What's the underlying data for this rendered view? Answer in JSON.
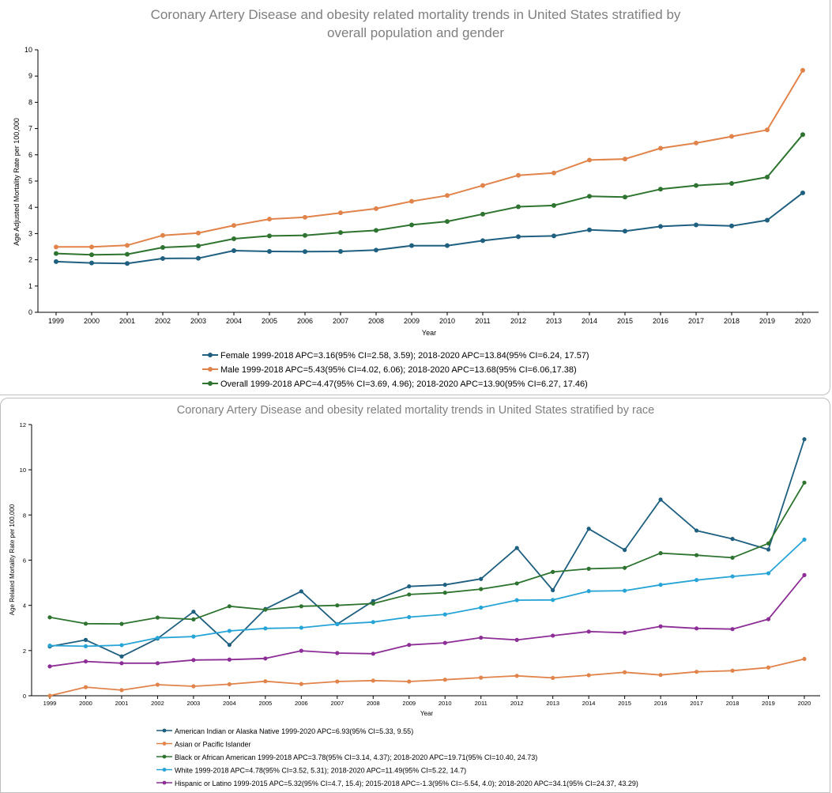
{
  "colors": {
    "female": "#1f5f7f",
    "male": "#e0844b",
    "overall": "#2e7430",
    "aian": "#1f5f7f",
    "api": "#e0844b",
    "black": "#2e7430",
    "white": "#27a4d6",
    "hispanic": "#8c2e95",
    "axis": "#000000",
    "title": "#7f7f7f"
  },
  "chart_data": [
    {
      "type": "line",
      "title_lines": [
        "Coronary Artery Disease and obesity related mortality trends in United States stratified by",
        "overall population and gender"
      ],
      "xlabel": "Year",
      "ylabel": "Age Adjusted Mortality Rate per 100,000",
      "ylim": [
        0,
        10
      ],
      "yticks": [
        "0",
        "1",
        "2",
        "3",
        "4",
        "5",
        "6",
        "7",
        "8",
        "9",
        "10"
      ],
      "categories": [
        "1999",
        "2000",
        "2001",
        "2002",
        "2003",
        "2004",
        "2005",
        "2006",
        "2007",
        "2008",
        "2009",
        "2010",
        "2011",
        "2012",
        "2013",
        "2014",
        "2015",
        "2016",
        "2017",
        "2018",
        "2019",
        "2020"
      ],
      "series": [
        {
          "key": "female",
          "name": "Female 1999-2018 APC=3.16(95% CI=2.58, 3.59); 2018-2020 APC=13.84(95% CI=6.24, 17.57)",
          "values": [
            1.93,
            1.88,
            1.86,
            2.05,
            2.06,
            2.35,
            2.32,
            2.31,
            2.32,
            2.37,
            2.54,
            2.54,
            2.73,
            2.88,
            2.91,
            3.14,
            3.09,
            3.27,
            3.33,
            3.29,
            3.51,
            4.55
          ]
        },
        {
          "key": "male",
          "name": "Male 1999-2018 APC=5.43(95% CI=4.02, 6.06); 2018-2020 APC=13.68(95% CI=6.06,17.38)",
          "values": [
            2.49,
            2.49,
            2.55,
            2.93,
            3.02,
            3.31,
            3.55,
            3.62,
            3.79,
            3.95,
            4.23,
            4.45,
            4.83,
            5.22,
            5.31,
            5.8,
            5.84,
            6.25,
            6.45,
            6.7,
            6.95,
            9.22
          ]
        },
        {
          "key": "overall",
          "name": "Overall 1999-2018 APC=4.47(95% CI=3.69, 4.96); 2018-2020 APC=13.90(95% CI=6.27, 17.46)",
          "values": [
            2.24,
            2.19,
            2.21,
            2.47,
            2.53,
            2.8,
            2.91,
            2.93,
            3.04,
            3.12,
            3.33,
            3.46,
            3.74,
            4.02,
            4.07,
            4.42,
            4.39,
            4.69,
            4.83,
            4.91,
            5.15,
            6.77
          ]
        }
      ]
    },
    {
      "type": "line",
      "title": "Coronary Artery Disease and obesity related mortality trends in United States stratified by race",
      "xlabel": "Year",
      "ylabel": "Age Related Mortality Rate per 100,000",
      "ylim": [
        0,
        12
      ],
      "yticks": [
        "0",
        "2",
        "4",
        "6",
        "8",
        "10",
        "12"
      ],
      "categories": [
        "1999",
        "2000",
        "2001",
        "2002",
        "2003",
        "2004",
        "2005",
        "2006",
        "2007",
        "2008",
        "2009",
        "2010",
        "2011",
        "2012",
        "2013",
        "2014",
        "2015",
        "2016",
        "2017",
        "2018",
        "2019",
        "2020"
      ],
      "series": [
        {
          "key": "aian",
          "name": "American Indian or Alaska Native 1999-2020 APC=6.93(95% CI=5.33, 9.55)",
          "values": [
            2.18,
            2.47,
            1.74,
            2.53,
            3.72,
            2.25,
            3.84,
            4.62,
            3.17,
            4.19,
            4.84,
            4.91,
            5.17,
            6.54,
            4.67,
            7.39,
            6.45,
            8.68,
            7.31,
            6.94,
            6.47,
            11.35
          ]
        },
        {
          "key": "api",
          "name": "Asian or Pacific Islander",
          "values": [
            0.0,
            0.38,
            0.25,
            0.49,
            0.42,
            0.51,
            0.64,
            0.52,
            0.63,
            0.67,
            0.63,
            0.71,
            0.8,
            0.88,
            0.79,
            0.91,
            1.04,
            0.92,
            1.06,
            1.11,
            1.25,
            1.63
          ]
        },
        {
          "key": "black",
          "name": "Black or African American 1999-2018 APC=3.78(95% CI=3.14, 4.37); 2018-2020 APC=19.71(95% CI=10.40, 24.73)",
          "values": [
            3.47,
            3.19,
            3.18,
            3.46,
            3.38,
            3.96,
            3.81,
            3.96,
            4.0,
            4.08,
            4.48,
            4.56,
            4.72,
            4.97,
            5.48,
            5.62,
            5.66,
            6.31,
            6.22,
            6.11,
            6.74,
            9.43
          ]
        },
        {
          "key": "white",
          "name": "White 1999-2018 APC=4.78(95% CI=3.52, 5.31); 2018-2020 APC=11.49(95% CI=5.22, 14.7)",
          "values": [
            2.22,
            2.19,
            2.24,
            2.56,
            2.62,
            2.87,
            2.98,
            3.01,
            3.17,
            3.26,
            3.48,
            3.6,
            3.9,
            4.23,
            4.24,
            4.63,
            4.65,
            4.91,
            5.12,
            5.28,
            5.42,
            6.91
          ]
        },
        {
          "key": "hispanic",
          "name": "Hispanic or Latino 1999-2015 APC=5.32(95% CI=4.7, 15.4); 2015-2018 APC=-1.3(95% CI=-5.54, 4.0); 2018-2020 APC=34.1(95% CI=24.37, 43.29)",
          "values": [
            1.3,
            1.52,
            1.44,
            1.44,
            1.58,
            1.6,
            1.65,
            1.99,
            1.89,
            1.86,
            2.25,
            2.34,
            2.57,
            2.47,
            2.66,
            2.84,
            2.79,
            3.07,
            2.98,
            2.95,
            3.39,
            5.34
          ]
        }
      ]
    }
  ]
}
